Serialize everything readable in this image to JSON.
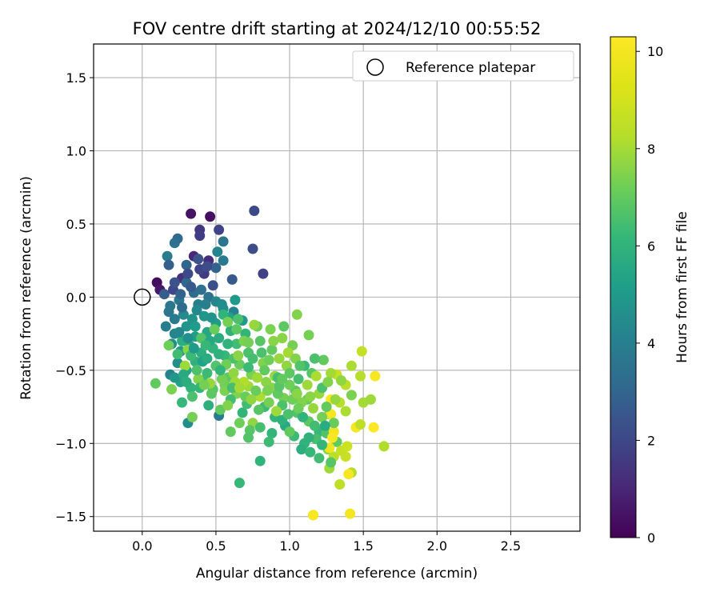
{
  "chart_data": {
    "type": "scatter",
    "title": "FOV centre drift starting at 2024/12/10 00:55:52",
    "xlabel": "Angular distance from reference (arcmin)",
    "ylabel": "Rotation from reference (arcmin)",
    "xlim": [
      -0.33,
      2.97
    ],
    "ylim": [
      -1.6,
      1.73
    ],
    "xticks": [
      0.0,
      0.5,
      1.0,
      1.5,
      2.0,
      2.5
    ],
    "yticks": [
      -1.5,
      -1.0,
      -0.5,
      0.0,
      0.5,
      1.0,
      1.5
    ],
    "xtick_labels": [
      "0.0",
      "0.5",
      "1.0",
      "1.5",
      "2.0",
      "2.5"
    ],
    "ytick_labels": [
      "−1.5",
      "−1.0",
      "−0.5",
      "0.0",
      "0.5",
      "1.0",
      "1.5"
    ],
    "grid": true,
    "legend": {
      "placement": "upper-right",
      "entries": [
        "Reference platepar"
      ]
    },
    "reference_point": {
      "name": "Reference platepar",
      "x": 0.0,
      "y": 0.0,
      "marker": "open-circle"
    },
    "colorbar": {
      "label": "Hours from first FF file",
      "colormap": "viridis",
      "range": [
        0,
        10.3
      ],
      "ticks": [
        0,
        2,
        4,
        6,
        8,
        10
      ],
      "tick_labels": [
        "0",
        "2",
        "4",
        "6",
        "8",
        "10"
      ]
    },
    "points": [
      [
        0.1,
        0.1,
        0.3
      ],
      [
        0.12,
        0.05,
        0.6
      ],
      [
        0.33,
        0.57,
        0.5
      ],
      [
        0.46,
        0.55,
        0.4
      ],
      [
        0.39,
        0.46,
        1.5
      ],
      [
        0.39,
        0.42,
        1.7
      ],
      [
        0.52,
        0.46,
        1.9
      ],
      [
        0.76,
        0.59,
        2.1
      ],
      [
        0.24,
        0.4,
        3.2
      ],
      [
        0.22,
        0.37,
        3.4
      ],
      [
        0.55,
        0.38,
        3.6
      ],
      [
        0.51,
        0.31,
        4.2
      ],
      [
        0.75,
        0.33,
        2.2
      ],
      [
        0.82,
        0.16,
        1.8
      ],
      [
        0.17,
        0.28,
        3.9
      ],
      [
        0.35,
        0.28,
        1.0
      ],
      [
        0.45,
        0.25,
        1.2
      ],
      [
        0.61,
        0.12,
        2.6
      ],
      [
        0.18,
        0.22,
        2.8
      ],
      [
        0.3,
        0.22,
        3.0
      ],
      [
        0.38,
        0.26,
        2.4
      ],
      [
        0.5,
        0.2,
        2.9
      ],
      [
        0.55,
        0.25,
        3.8
      ],
      [
        0.27,
        0.13,
        1.3
      ],
      [
        0.42,
        0.16,
        1.6
      ],
      [
        0.48,
        0.08,
        2.3
      ],
      [
        0.15,
        0.02,
        2.7
      ],
      [
        0.21,
        0.05,
        2.0
      ],
      [
        0.3,
        0.1,
        3.1
      ],
      [
        0.35,
        0.03,
        3.3
      ],
      [
        0.45,
        0.0,
        3.5
      ],
      [
        0.25,
        -0.02,
        3.7
      ],
      [
        0.38,
        -0.05,
        4.0
      ],
      [
        0.5,
        -0.03,
        4.3
      ],
      [
        0.55,
        -0.08,
        4.6
      ],
      [
        0.62,
        -0.1,
        4.1
      ],
      [
        0.18,
        -0.1,
        3.6
      ],
      [
        0.28,
        -0.12,
        4.4
      ],
      [
        0.34,
        -0.15,
        4.7
      ],
      [
        0.42,
        -0.13,
        4.9
      ],
      [
        0.5,
        -0.18,
        5.1
      ],
      [
        0.59,
        -0.14,
        5.3
      ],
      [
        0.68,
        -0.16,
        5.0
      ],
      [
        0.16,
        -0.2,
        3.9
      ],
      [
        0.22,
        -0.25,
        4.2
      ],
      [
        0.3,
        -0.2,
        4.8
      ],
      [
        0.36,
        -0.27,
        5.2
      ],
      [
        0.44,
        -0.24,
        5.5
      ],
      [
        0.52,
        -0.28,
        5.7
      ],
      [
        0.6,
        -0.23,
        5.9
      ],
      [
        0.7,
        -0.25,
        6.1
      ],
      [
        0.78,
        -0.2,
        7.2
      ],
      [
        0.2,
        -0.32,
        4.5
      ],
      [
        0.26,
        -0.37,
        5.0
      ],
      [
        0.32,
        -0.33,
        5.6
      ],
      [
        0.4,
        -0.38,
        5.8
      ],
      [
        0.48,
        -0.35,
        6.0
      ],
      [
        0.56,
        -0.4,
        6.2
      ],
      [
        0.64,
        -0.32,
        6.4
      ],
      [
        0.72,
        -0.38,
        6.6
      ],
      [
        0.8,
        -0.3,
        6.8
      ],
      [
        0.88,
        -0.36,
        7.0
      ],
      [
        0.95,
        -0.28,
        7.6
      ],
      [
        1.02,
        -0.33,
        7.3
      ],
      [
        0.24,
        -0.45,
        4.6
      ],
      [
        0.3,
        -0.5,
        5.4
      ],
      [
        0.36,
        -0.44,
        5.9
      ],
      [
        0.44,
        -0.52,
        6.3
      ],
      [
        0.5,
        -0.47,
        6.7
      ],
      [
        0.58,
        -0.55,
        6.9
      ],
      [
        0.66,
        -0.46,
        7.1
      ],
      [
        0.74,
        -0.53,
        7.4
      ],
      [
        0.82,
        -0.45,
        7.5
      ],
      [
        0.9,
        -0.54,
        7.8
      ],
      [
        0.98,
        -0.47,
        7.7
      ],
      [
        1.06,
        -0.56,
        6.5
      ],
      [
        0.19,
        -0.53,
        4.1
      ],
      [
        0.26,
        -0.58,
        5.3
      ],
      [
        0.33,
        -0.62,
        6.0
      ],
      [
        0.41,
        -0.57,
        6.4
      ],
      [
        0.48,
        -0.63,
        6.8
      ],
      [
        0.56,
        -0.6,
        7.2
      ],
      [
        0.64,
        -0.66,
        7.5
      ],
      [
        0.72,
        -0.61,
        7.9
      ],
      [
        0.8,
        -0.68,
        8.1
      ],
      [
        0.88,
        -0.62,
        7.6
      ],
      [
        0.96,
        -0.69,
        7.3
      ],
      [
        1.04,
        -0.64,
        6.9
      ],
      [
        1.12,
        -0.7,
        7.1
      ],
      [
        1.2,
        -0.66,
        7.8
      ],
      [
        0.09,
        -0.59,
        7.0
      ],
      [
        0.2,
        -0.63,
        7.4
      ],
      [
        0.34,
        -0.68,
        6.6
      ],
      [
        0.27,
        -0.72,
        6.2
      ],
      [
        0.45,
        -0.74,
        5.8
      ],
      [
        0.52,
        -0.81,
        3.8
      ],
      [
        0.31,
        -0.86,
        4.5
      ],
      [
        0.34,
        -0.82,
        7.3
      ],
      [
        0.53,
        -0.77,
        7.0
      ],
      [
        0.6,
        -0.7,
        6.4
      ],
      [
        0.68,
        -0.79,
        6.1
      ],
      [
        0.75,
        -0.86,
        7.7
      ],
      [
        0.83,
        -0.75,
        6.3
      ],
      [
        0.9,
        -0.82,
        6.0
      ],
      [
        0.97,
        -0.88,
        5.6
      ],
      [
        1.05,
        -0.79,
        6.7
      ],
      [
        1.13,
        -0.85,
        6.9
      ],
      [
        1.2,
        -0.92,
        6.2
      ],
      [
        1.27,
        -0.8,
        7.5
      ],
      [
        1.34,
        -0.72,
        8.3
      ],
      [
        0.66,
        -0.86,
        7.2
      ],
      [
        0.73,
        -0.91,
        6.8
      ],
      [
        0.8,
        -0.89,
        6.5
      ],
      [
        0.88,
        -0.93,
        6.1
      ],
      [
        0.95,
        -0.84,
        5.9
      ],
      [
        1.03,
        -0.95,
        6.3
      ],
      [
        1.1,
        -1.0,
        6.0
      ],
      [
        1.18,
        -0.97,
        6.5
      ],
      [
        1.25,
        -0.93,
        6.7
      ],
      [
        1.32,
        -0.99,
        7.0
      ],
      [
        1.08,
        -1.04,
        5.8
      ],
      [
        1.14,
        -1.06,
        6.2
      ],
      [
        1.2,
        -1.1,
        6.4
      ],
      [
        1.26,
        -1.04,
        7.6
      ],
      [
        1.3,
        -1.09,
        8.4
      ],
      [
        1.35,
        -1.05,
        8.6
      ],
      [
        1.39,
        -1.02,
        8.8
      ],
      [
        1.38,
        -1.09,
        8.7
      ],
      [
        1.42,
        -1.2,
        8.2
      ],
      [
        1.4,
        -1.21,
        10.1
      ],
      [
        1.34,
        -1.28,
        8.5
      ],
      [
        1.27,
        -1.17,
        7.9
      ],
      [
        1.16,
        -1.49,
        8.0
      ],
      [
        1.16,
        -1.49,
        10.2
      ],
      [
        1.41,
        -1.48,
        10.0
      ],
      [
        0.66,
        -1.27,
        6.2
      ],
      [
        0.8,
        -1.12,
        6.0
      ],
      [
        1.28,
        -1.13,
        6.8
      ],
      [
        1.28,
        -0.7,
        10.1
      ],
      [
        1.28,
        -0.8,
        10.0
      ],
      [
        1.3,
        -0.92,
        9.9
      ],
      [
        1.29,
        -0.96,
        10.2
      ],
      [
        1.27,
        -1.03,
        9.8
      ],
      [
        1.45,
        -0.89,
        10.0
      ],
      [
        1.57,
        -0.89,
        10.3
      ],
      [
        1.58,
        -0.54,
        10.1
      ],
      [
        1.49,
        -0.37,
        8.6
      ],
      [
        1.42,
        -0.47,
        8.1
      ],
      [
        1.48,
        -0.54,
        8.3
      ],
      [
        1.5,
        -0.72,
        8.0
      ],
      [
        1.55,
        -0.7,
        7.9
      ],
      [
        1.64,
        -1.02,
        8.2
      ],
      [
        1.42,
        -0.67,
        7.4
      ],
      [
        1.38,
        -0.6,
        8.4
      ],
      [
        1.32,
        -0.53,
        8.7
      ],
      [
        1.28,
        -0.52,
        8.0
      ],
      [
        1.35,
        -0.57,
        7.7
      ],
      [
        1.48,
        -0.87,
        8.5
      ],
      [
        1.3,
        -0.86,
        7.1
      ],
      [
        1.22,
        -0.82,
        7.3
      ],
      [
        1.23,
        -0.43,
        7.0
      ],
      [
        1.17,
        -0.42,
        6.6
      ],
      [
        1.15,
        -0.52,
        6.8
      ],
      [
        1.1,
        -0.47,
        6.3
      ],
      [
        1.13,
        -0.26,
        7.3
      ],
      [
        1.05,
        -0.12,
        7.5
      ],
      [
        0.96,
        -0.2,
        6.9
      ],
      [
        0.87,
        -0.22,
        7.4
      ],
      [
        0.76,
        -0.19,
        7.8
      ],
      [
        0.65,
        -0.15,
        6.6
      ],
      [
        0.55,
        -0.12,
        6.0
      ],
      [
        0.58,
        -0.17,
        7.3
      ],
      [
        0.49,
        -0.22,
        7.1
      ],
      [
        0.4,
        -0.28,
        6.7
      ],
      [
        0.31,
        -0.36,
        7.6
      ],
      [
        0.24,
        -0.39,
        6.4
      ],
      [
        0.18,
        -0.33,
        7.2
      ],
      [
        0.29,
        -0.47,
        7.9
      ],
      [
        0.38,
        -0.56,
        7.5
      ],
      [
        0.46,
        -0.59,
        7.8
      ],
      [
        0.54,
        -0.56,
        7.3
      ],
      [
        0.62,
        -0.52,
        7.7
      ],
      [
        0.69,
        -0.58,
        8.2
      ],
      [
        0.77,
        -0.64,
        7.1
      ],
      [
        0.84,
        -0.58,
        7.6
      ],
      [
        0.92,
        -0.66,
        7.0
      ],
      [
        1.0,
        -0.6,
        7.2
      ],
      [
        1.08,
        -0.72,
        7.5
      ],
      [
        1.16,
        -0.76,
        7.8
      ],
      [
        1.22,
        -0.62,
        6.6
      ],
      [
        0.27,
        -0.07,
        3.2
      ],
      [
        0.22,
        -0.15,
        3.8
      ],
      [
        0.37,
        -0.09,
        4.4
      ],
      [
        0.43,
        -0.05,
        4.0
      ],
      [
        0.46,
        -0.3,
        5.6
      ],
      [
        0.58,
        -0.32,
        6.0
      ],
      [
        0.69,
        -0.3,
        7.4
      ],
      [
        0.75,
        -0.42,
        6.5
      ],
      [
        0.86,
        -0.43,
        7.2
      ],
      [
        0.93,
        -0.42,
        7.8
      ],
      [
        0.99,
        -0.38,
        8.0
      ],
      [
        1.04,
        -0.42,
        7.5
      ],
      [
        0.62,
        -0.42,
        6.6
      ],
      [
        0.52,
        -0.39,
        5.9
      ],
      [
        0.41,
        -0.44,
        5.3
      ],
      [
        0.33,
        -0.4,
        6.3
      ],
      [
        0.27,
        -0.3,
        5.8
      ],
      [
        0.22,
        -0.55,
        4.9
      ],
      [
        0.28,
        -0.53,
        5.6
      ],
      [
        0.39,
        -0.62,
        6.1
      ],
      [
        0.47,
        -0.66,
        6.9
      ],
      [
        0.56,
        -0.64,
        7.4
      ],
      [
        0.63,
        -0.58,
        7.9
      ],
      [
        0.71,
        -0.73,
        6.4
      ],
      [
        0.79,
        -0.77,
        6.8
      ],
      [
        0.86,
        -0.72,
        7.3
      ],
      [
        0.95,
        -0.74,
        6.6
      ],
      [
        1.02,
        -0.7,
        7.2
      ],
      [
        1.09,
        -0.82,
        6.0
      ],
      [
        1.17,
        -0.88,
        6.4
      ],
      [
        1.24,
        -0.88,
        5.7
      ],
      [
        0.6,
        -0.92,
        7.0
      ],
      [
        0.72,
        -0.96,
        6.7
      ],
      [
        0.86,
        -0.99,
        6.3
      ],
      [
        1.0,
        -0.92,
        7.0
      ],
      [
        1.13,
        -0.96,
        5.9
      ],
      [
        1.22,
        -1.01,
        6.1
      ],
      [
        0.92,
        -0.55,
        6.5
      ],
      [
        1.0,
        -0.52,
        6.9
      ],
      [
        0.83,
        -0.5,
        7.0
      ],
      [
        0.72,
        -0.48,
        6.3
      ],
      [
        0.65,
        -0.4,
        7.6
      ],
      [
        0.57,
        -0.46,
        7.2
      ],
      [
        0.36,
        -0.2,
        5.1
      ],
      [
        0.43,
        -0.33,
        6.2
      ],
      [
        0.31,
        -0.28,
        4.6
      ],
      [
        0.47,
        -0.14,
        4.8
      ],
      [
        0.54,
        -0.05,
        4.5
      ],
      [
        0.63,
        -0.02,
        5.0
      ],
      [
        0.26,
        0.02,
        2.9
      ],
      [
        0.33,
        0.07,
        2.6
      ],
      [
        0.4,
        0.05,
        3.4
      ],
      [
        0.22,
        0.1,
        2.4
      ],
      [
        0.31,
        0.16,
        2.1
      ],
      [
        0.39,
        0.19,
        1.9
      ],
      [
        0.44,
        0.21,
        2.2
      ],
      [
        0.19,
        -0.06,
        3.7
      ],
      [
        0.25,
        -0.24,
        4.3
      ],
      [
        0.35,
        -0.35,
        5.0
      ],
      [
        0.44,
        -0.42,
        5.7
      ],
      [
        0.53,
        -0.5,
        6.1
      ],
      [
        0.61,
        -0.62,
        6.5
      ],
      [
        0.7,
        -0.68,
        7.1
      ],
      [
        0.78,
        -0.55,
        7.9
      ],
      [
        0.85,
        -0.64,
        7.4
      ],
      [
        0.93,
        -0.61,
        6.8
      ],
      [
        1.05,
        -0.66,
        7.6
      ],
      [
        1.12,
        -0.6,
        7.9
      ],
      [
        1.18,
        -0.54,
        8.1
      ],
      [
        1.26,
        -0.58,
        7.5
      ],
      [
        0.64,
        -0.22,
        6.9
      ],
      [
        0.72,
        -0.31,
        7.3
      ],
      [
        0.81,
        -0.38,
        6.6
      ],
      [
        0.89,
        -0.3,
        7.6
      ],
      [
        0.95,
        -0.56,
        7.0
      ],
      [
        1.07,
        -0.47,
        6.7
      ],
      [
        0.3,
        -0.58,
        5.8
      ],
      [
        0.37,
        -0.5,
        6.6
      ],
      [
        0.42,
        -0.6,
        7.3
      ],
      [
        0.58,
        -0.74,
        7.5
      ],
      [
        0.66,
        -0.62,
        8.0
      ],
      [
        0.74,
        -0.7,
        7.7
      ],
      [
        0.91,
        -0.78,
        7.9
      ],
      [
        0.99,
        -0.8,
        6.6
      ],
      [
        1.06,
        -0.76,
        7.2
      ],
      [
        1.14,
        -0.68,
        7.6
      ],
      [
        1.25,
        -0.75,
        7.0
      ],
      [
        1.31,
        -0.7,
        7.8
      ],
      [
        1.38,
        -0.78,
        8.1
      ]
    ]
  }
}
